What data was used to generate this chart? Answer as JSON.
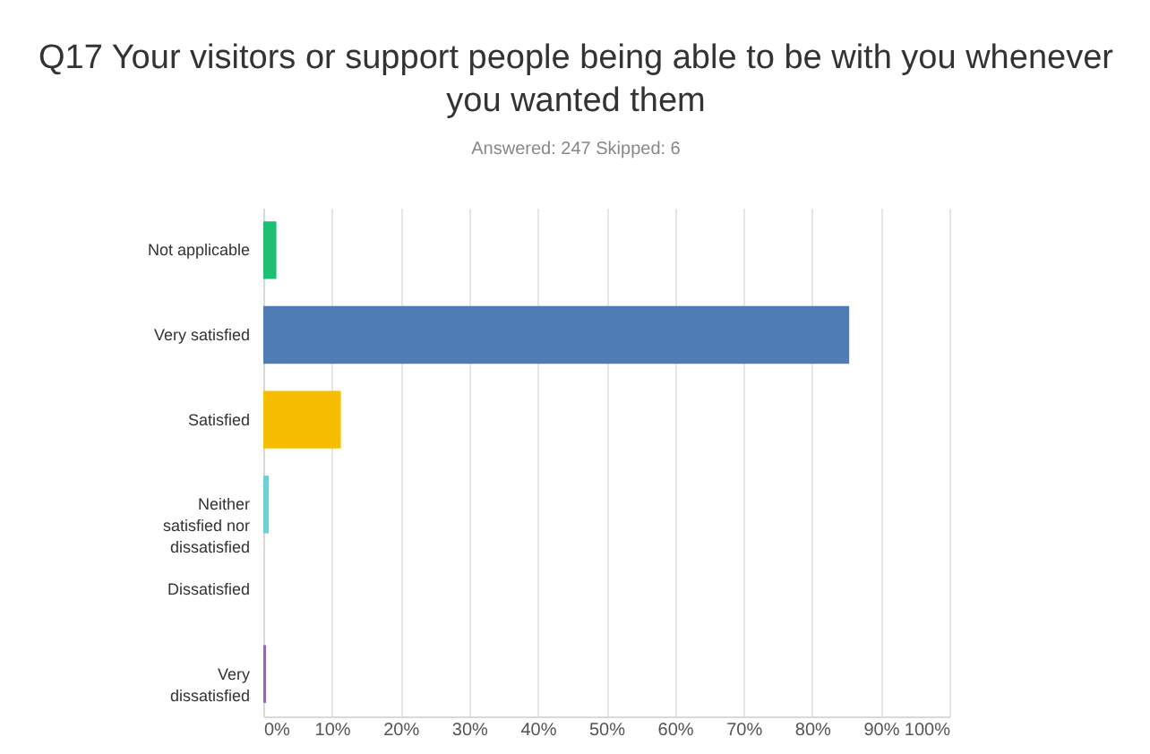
{
  "chart_data": {
    "type": "bar",
    "orientation": "horizontal",
    "title": "Q17 Your visitors or support people being able to be with you whenever you wanted them",
    "subtitle": "Answered: 247    Skipped: 6",
    "categories": [
      "Not applicable",
      "Very satisfied",
      "Satisfied",
      "Neither satisfied nor dissatisfied",
      "Dissatisfied",
      "Very dissatisfied"
    ],
    "values": [
      1.9,
      85.4,
      11.3,
      0.8,
      0,
      0.4
    ],
    "colors": [
      "#1dbf73",
      "#4f7cb5",
      "#f7bd00",
      "#6fcfd6",
      "#e06666",
      "#8e6bb0"
    ],
    "xlim": [
      0,
      100
    ],
    "xticks": [
      {
        "value": 0,
        "label": "0%"
      },
      {
        "value": 10,
        "label": "10%"
      },
      {
        "value": 20,
        "label": "20%"
      },
      {
        "value": 30,
        "label": "30%"
      },
      {
        "value": 40,
        "label": "40%"
      },
      {
        "value": 50,
        "label": "50%"
      },
      {
        "value": 60,
        "label": "60%"
      },
      {
        "value": 70,
        "label": "70%"
      },
      {
        "value": 80,
        "label": "80%"
      },
      {
        "value": 90,
        "label": "90%"
      },
      {
        "value": 100,
        "label": "100%"
      }
    ],
    "grid": "x"
  }
}
